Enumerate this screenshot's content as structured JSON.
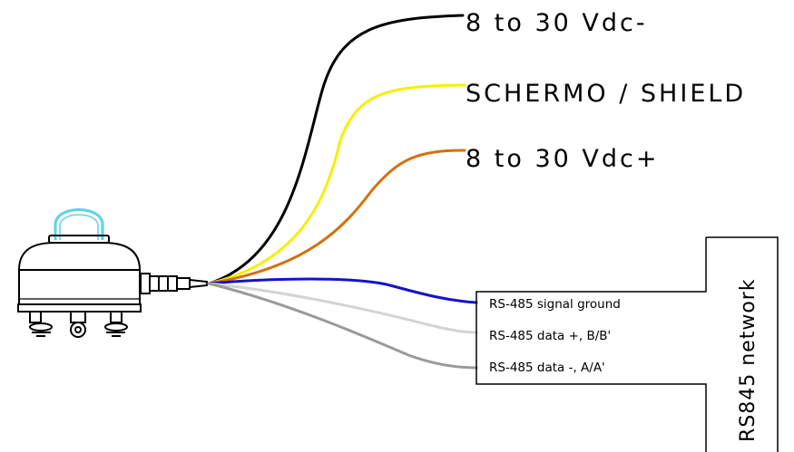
{
  "labels": {
    "vdc_minus": "8 to 30 Vdc-",
    "shield": "SCHERMO / SHIELD",
    "vdc_plus": "8 to 30 Vdc+",
    "rs485_ground": "RS-485 signal ground",
    "rs485_data_plus": "RS-485 data +, B/B'",
    "rs485_data_minus": "RS-485 data -, A/A'",
    "network": "RS845 network"
  },
  "wire_colors": {
    "vdc_minus": "#000000",
    "shield": "#f5f000",
    "vdc_plus": "#d2720e",
    "rs485_ground": "#1414c8",
    "rs485_data_plus": "#d4d4d4",
    "rs485_data_minus": "#9a9a9a"
  },
  "dome_color": "#5ad2e6"
}
